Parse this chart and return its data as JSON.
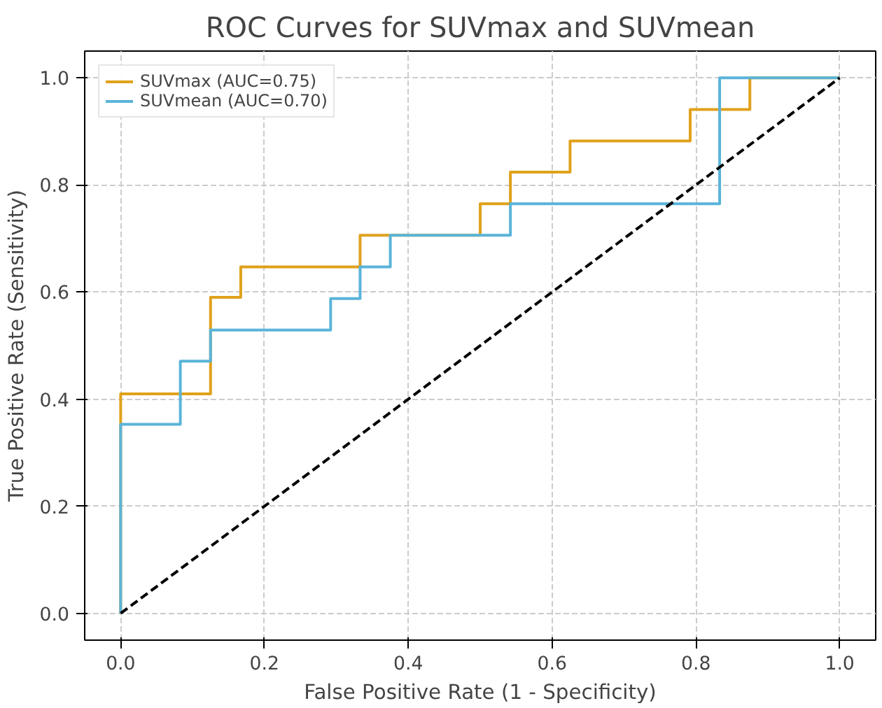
{
  "chart_data": {
    "type": "line",
    "title": "ROC Curves for SUVmax and SUVmean",
    "xlabel": "False Positive Rate (1 - Specificity)",
    "ylabel": "True Positive Rate (Sensitivity)",
    "xlim": [
      -0.05,
      1.05
    ],
    "ylim": [
      -0.05,
      1.05
    ],
    "xticks": [
      {
        "value": 0,
        "label": "0.0"
      },
      {
        "value": 0.2,
        "label": "0.2"
      },
      {
        "value": 0.4,
        "label": "0.4"
      },
      {
        "value": 0.6,
        "label": "0.6"
      },
      {
        "value": 0.8,
        "label": "0.8"
      },
      {
        "value": 1,
        "label": "1.0"
      }
    ],
    "yticks": [
      {
        "value": 0,
        "label": "0.0"
      },
      {
        "value": 0.2,
        "label": "0.2"
      },
      {
        "value": 0.4,
        "label": "0.4"
      },
      {
        "value": 0.6,
        "label": "0.6"
      },
      {
        "value": 0.8,
        "label": "0.8"
      },
      {
        "value": 1,
        "label": "1.0"
      }
    ],
    "grid": true,
    "legend": "top left",
    "line_style": "solid",
    "series": [
      {
        "name": "SUVmax (AUC=0.75)",
        "color": "#e0a11b",
        "x": [
          0,
          0,
          0.125,
          0.125,
          0.167,
          0.167,
          0.333,
          0.333,
          0.5,
          0.5,
          0.542,
          0.542,
          0.625,
          0.625,
          0.792,
          0.792,
          0.875,
          0.875,
          1
        ],
        "values": [
          0,
          0.41,
          0.41,
          0.59,
          0.59,
          0.647,
          0.647,
          0.706,
          0.706,
          0.765,
          0.765,
          0.824,
          0.824,
          0.882,
          0.882,
          0.941,
          0.941,
          1,
          1
        ]
      },
      {
        "name": "SUVmean (AUC=0.70)",
        "color": "#5ab4d9",
        "x": [
          0,
          0,
          0.083,
          0.083,
          0.125,
          0.125,
          0.292,
          0.292,
          0.333,
          0.333,
          0.375,
          0.375,
          0.542,
          0.542,
          0.833,
          0.833,
          1
        ],
        "values": [
          0,
          0.353,
          0.353,
          0.471,
          0.471,
          0.529,
          0.529,
          0.588,
          0.588,
          0.647,
          0.647,
          0.706,
          0.706,
          0.765,
          0.765,
          1,
          1
        ]
      },
      {
        "color": "#000000",
        "line_style": "dashed",
        "x": [
          0,
          1
        ],
        "values": [
          0,
          1
        ]
      }
    ]
  }
}
